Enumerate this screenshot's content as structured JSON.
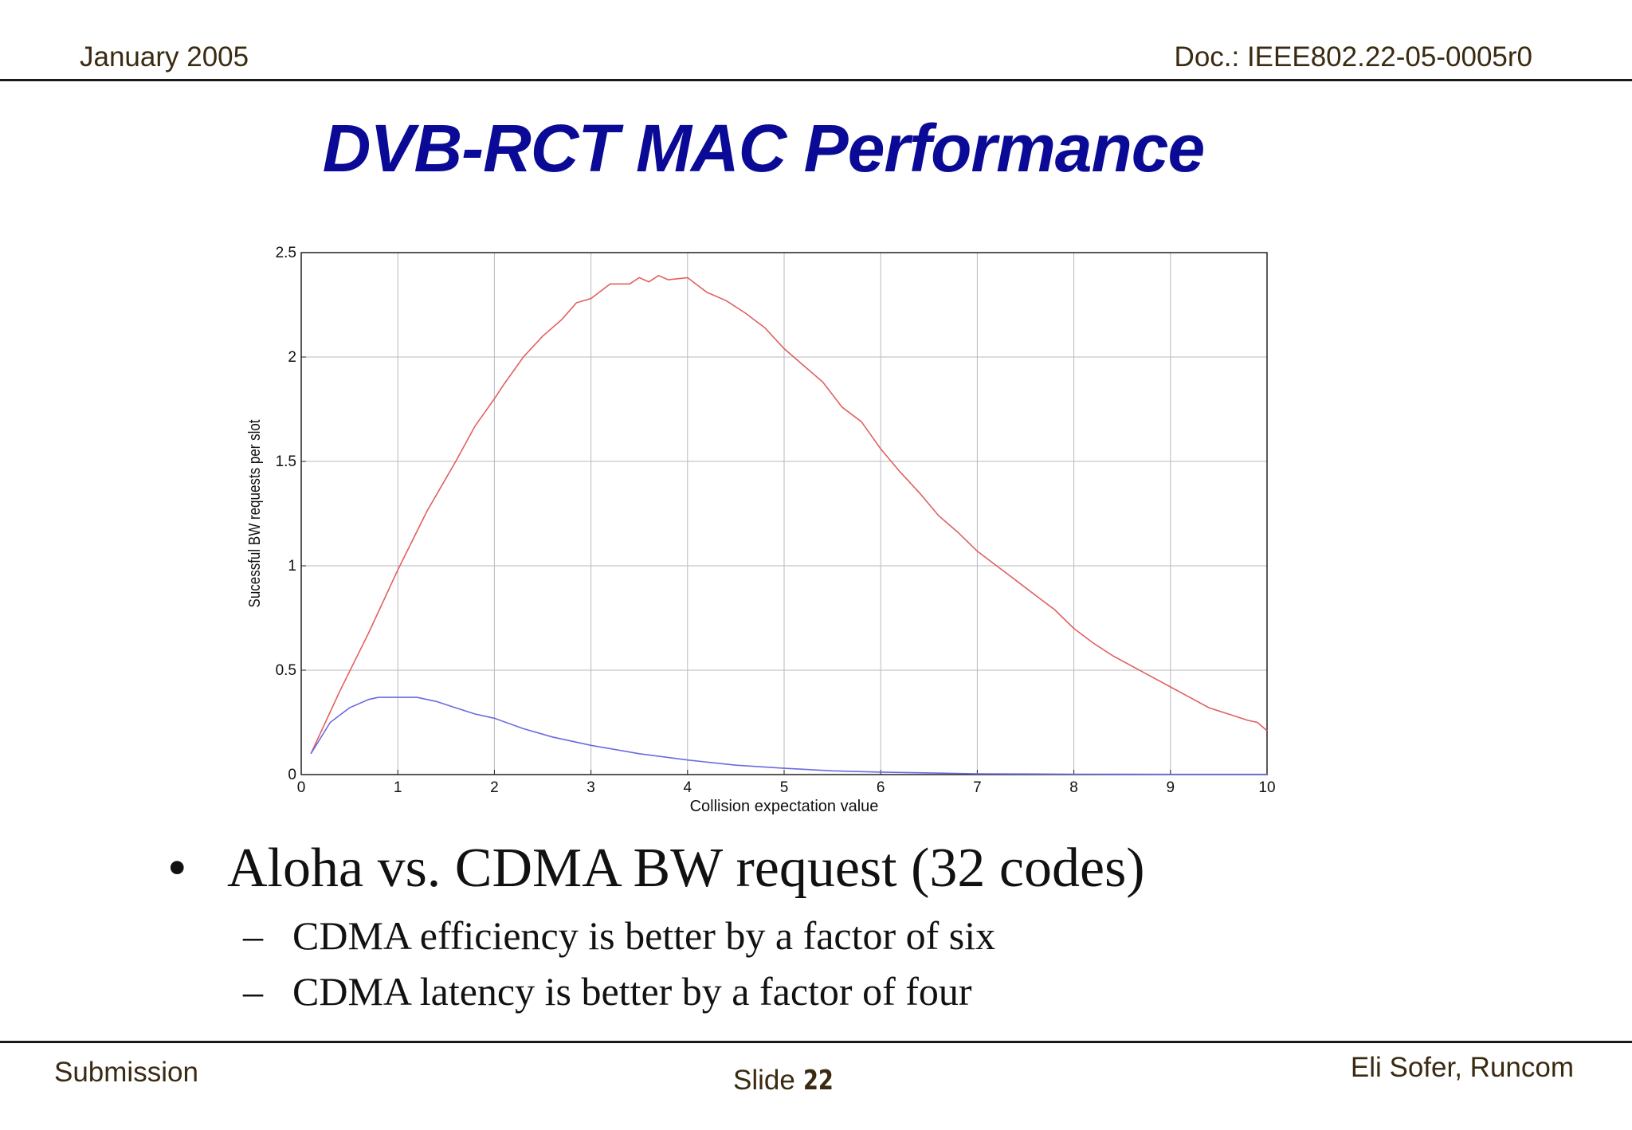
{
  "header": {
    "date": "January 2005",
    "doc": "Doc.: IEEE802.22-05-0005r0"
  },
  "slide": {
    "title": "DVB-RCT MAC Performance",
    "bullet_main": "Aloha vs. CDMA BW request (32 codes)",
    "sub_bullets": [
      "CDMA efficiency is better by a factor of six",
      "CDMA latency is better by a factor of four"
    ],
    "bullet_symbol": "•",
    "dash_symbol": "–"
  },
  "footer": {
    "left": "Submission",
    "slide_label": "Slide",
    "slide_number": "22",
    "author": "Eli Sofer, Runcom"
  },
  "colors": {
    "title": "#0a0a96",
    "series_cdma": "#e06060",
    "series_aloha": "#6a6ae0"
  },
  "chart_data": {
    "type": "line",
    "title": "",
    "xlabel": "Collision expectation value",
    "ylabel": "Sucessful BW requests per slot",
    "xlim": [
      0,
      10
    ],
    "ylim": [
      0,
      2.5
    ],
    "xticks": [
      0,
      1,
      2,
      3,
      4,
      5,
      6,
      7,
      8,
      9,
      10
    ],
    "xtick_labels": [
      "0",
      "1",
      "2",
      "3",
      "4",
      "5",
      "6",
      "7",
      "8",
      "9",
      "10"
    ],
    "yticks": [
      0,
      0.5,
      1,
      1.5,
      2,
      2.5
    ],
    "ytick_labels": [
      "0",
      "0.5",
      "1",
      "1.5",
      "2",
      "2.5"
    ],
    "grid": true,
    "series": [
      {
        "color": "#e06060",
        "x": [
          0.1,
          0.4,
          0.7,
          1.0,
          1.3,
          1.6,
          1.8,
          2.0,
          2.1,
          2.3,
          2.5,
          2.7,
          2.85,
          3.0,
          3.2,
          3.4,
          3.5,
          3.6,
          3.7,
          3.8,
          4.0,
          4.2,
          4.4,
          4.6,
          4.8,
          5.0,
          5.2,
          5.4,
          5.6,
          5.8,
          6.0,
          6.2,
          6.4,
          6.6,
          6.8,
          7.0,
          7.2,
          7.4,
          7.6,
          7.8,
          8.0,
          8.2,
          8.4,
          8.6,
          8.8,
          9.0,
          9.2,
          9.4,
          9.6,
          9.8,
          9.9,
          10.0
        ],
        "y": [
          0.1,
          0.4,
          0.68,
          0.98,
          1.26,
          1.5,
          1.67,
          1.8,
          1.87,
          2.0,
          2.1,
          2.18,
          2.26,
          2.28,
          2.35,
          2.35,
          2.38,
          2.36,
          2.39,
          2.37,
          2.38,
          2.31,
          2.27,
          2.21,
          2.14,
          2.04,
          1.96,
          1.88,
          1.76,
          1.69,
          1.56,
          1.45,
          1.35,
          1.24,
          1.16,
          1.07,
          1.0,
          0.93,
          0.86,
          0.79,
          0.7,
          0.63,
          0.57,
          0.52,
          0.47,
          0.42,
          0.37,
          0.32,
          0.29,
          0.26,
          0.25,
          0.21
        ]
      },
      {
        "color": "#6a6ae0",
        "x": [
          0.1,
          0.3,
          0.5,
          0.7,
          0.8,
          0.9,
          1.0,
          1.1,
          1.2,
          1.4,
          1.6,
          1.8,
          2.0,
          2.3,
          2.6,
          3.0,
          3.5,
          4.0,
          4.5,
          5.0,
          5.5,
          6.0,
          6.5,
          7.0,
          7.5,
          8.0,
          9.0,
          10.0
        ],
        "y": [
          0.1,
          0.25,
          0.32,
          0.36,
          0.37,
          0.37,
          0.37,
          0.37,
          0.37,
          0.35,
          0.32,
          0.29,
          0.27,
          0.22,
          0.18,
          0.14,
          0.1,
          0.07,
          0.045,
          0.03,
          0.018,
          0.012,
          0.008,
          0.004,
          0.003,
          0.002,
          0.001,
          0.001
        ]
      }
    ]
  }
}
